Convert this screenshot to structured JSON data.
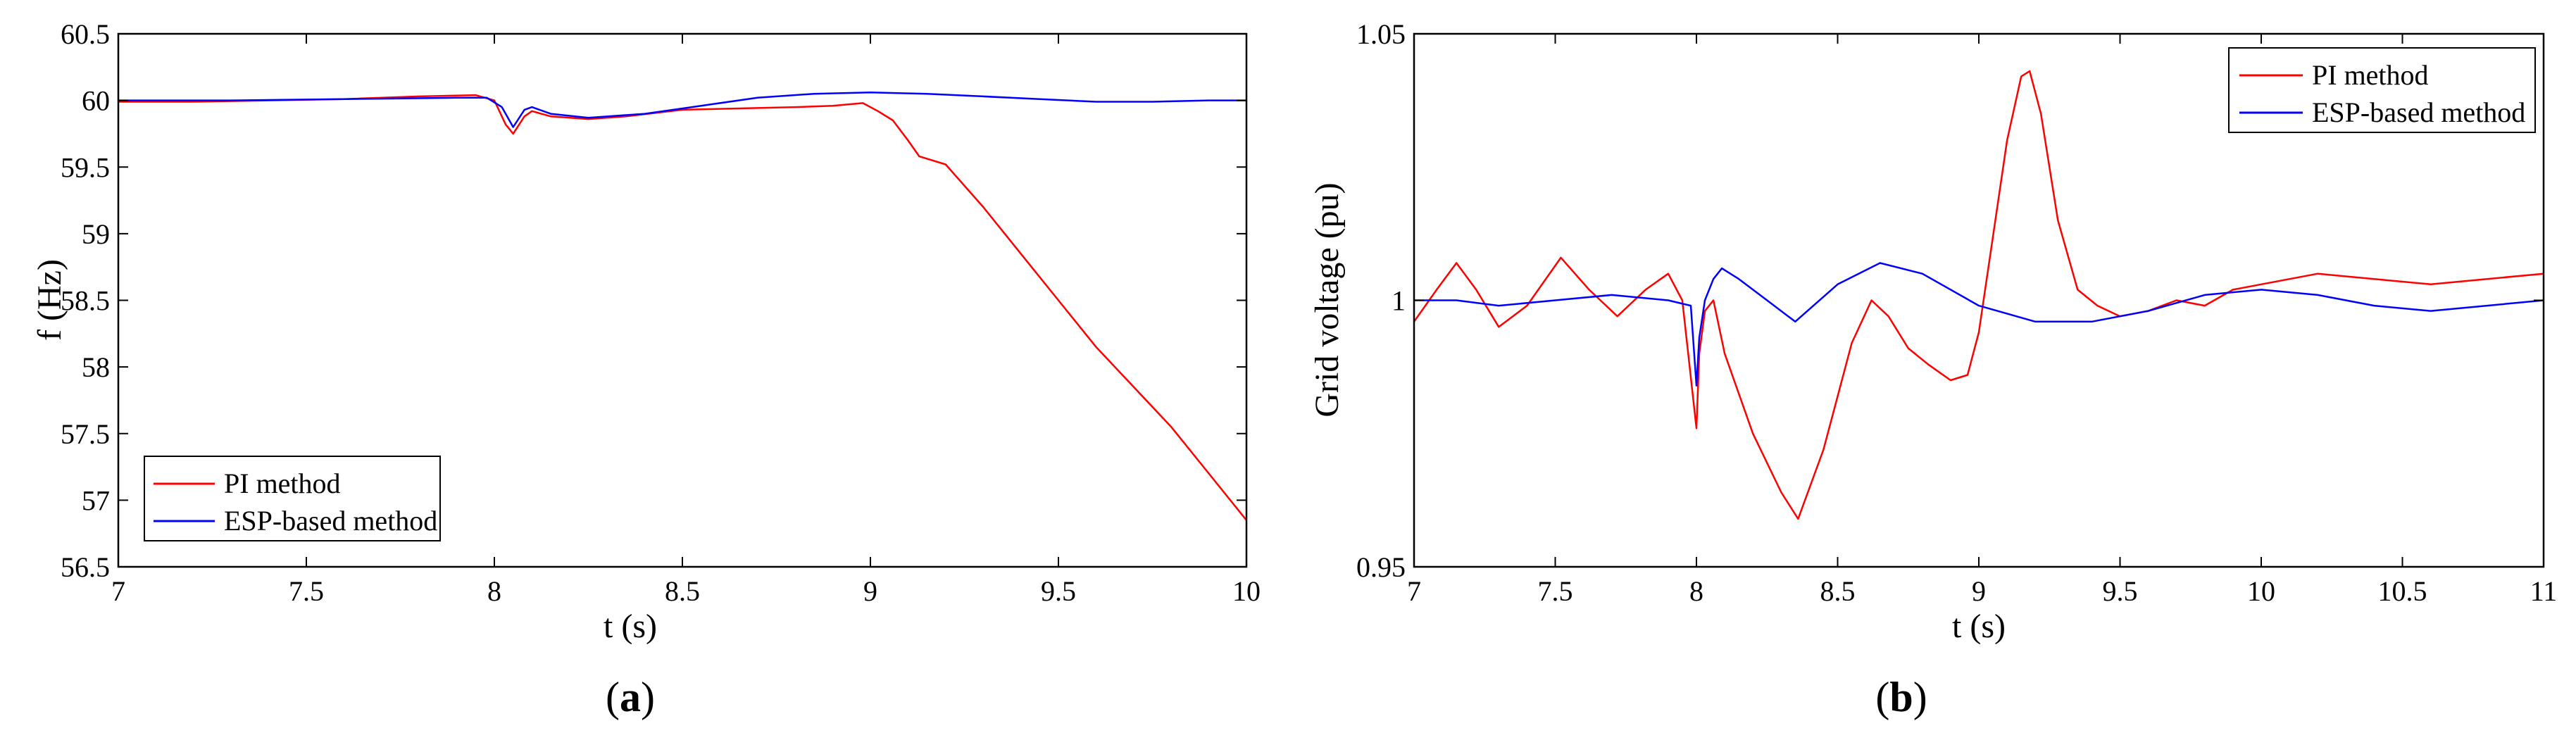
{
  "chart_data": [
    {
      "type": "line",
      "panel_label": "a",
      "xlabel": "t (s)",
      "ylabel": "f (Hz)",
      "xlim": [
        7,
        10
      ],
      "ylim": [
        56.5,
        60.5
      ],
      "xticks": [
        "7",
        "7.5",
        "8",
        "8.5",
        "9",
        "9.5",
        "10"
      ],
      "yticks": [
        "56.5",
        "57",
        "57.5",
        "58",
        "58.5",
        "59",
        "59.5",
        "60",
        "60.5"
      ],
      "grid": false,
      "legend_position": "bottom-left",
      "series": [
        {
          "name": "PI method",
          "color": "#ff0000",
          "x": [
            7,
            7.2,
            7.4,
            7.6,
            7.8,
            7.95,
            8.0,
            8.03,
            8.05,
            8.08,
            8.1,
            8.15,
            8.25,
            8.35,
            8.5,
            8.65,
            8.8,
            8.9,
            8.98,
            9.02,
            9.06,
            9.1,
            9.13,
            9.2,
            9.3,
            9.4,
            9.5,
            9.6,
            9.7,
            9.8,
            9.9,
            10.0
          ],
          "y": [
            59.99,
            59.99,
            60.0,
            60.01,
            60.03,
            60.04,
            60.0,
            59.82,
            59.75,
            59.88,
            59.92,
            59.88,
            59.86,
            59.88,
            59.93,
            59.94,
            59.95,
            59.96,
            59.98,
            59.92,
            59.85,
            59.7,
            59.58,
            59.52,
            59.2,
            58.85,
            58.5,
            58.15,
            57.85,
            57.55,
            57.2,
            56.85
          ]
        },
        {
          "name": "ESP-based method",
          "color": "#0000ff",
          "x": [
            7,
            7.3,
            7.6,
            7.9,
            7.98,
            8.02,
            8.05,
            8.08,
            8.1,
            8.15,
            8.25,
            8.4,
            8.55,
            8.7,
            8.85,
            9.0,
            9.15,
            9.3,
            9.45,
            9.6,
            9.75,
            9.9,
            10.0
          ],
          "y": [
            60.0,
            60.0,
            60.01,
            60.02,
            60.02,
            59.95,
            59.8,
            59.93,
            59.95,
            59.9,
            59.87,
            59.9,
            59.96,
            60.02,
            60.05,
            60.06,
            60.05,
            60.03,
            60.01,
            59.99,
            59.99,
            60.0,
            60.0
          ]
        }
      ]
    },
    {
      "type": "line",
      "panel_label": "b",
      "xlabel": "t (s)",
      "ylabel": "Grid voltage (pu)",
      "xlim": [
        7,
        11
      ],
      "ylim": [
        0.95,
        1.05
      ],
      "xticks": [
        "7",
        "7.5",
        "8",
        "8.5",
        "9",
        "9.5",
        "10",
        "10.5",
        "11"
      ],
      "yticks": [
        "0.95",
        "1",
        "1.05"
      ],
      "grid": false,
      "legend_position": "top-right",
      "series": [
        {
          "name": "PI method",
          "color": "#ff0000",
          "x": [
            7.0,
            7.08,
            7.15,
            7.22,
            7.3,
            7.4,
            7.52,
            7.62,
            7.72,
            7.82,
            7.9,
            7.95,
            8.0,
            8.01,
            8.03,
            8.06,
            8.1,
            8.2,
            8.3,
            8.36,
            8.45,
            8.55,
            8.62,
            8.68,
            8.75,
            8.82,
            8.9,
            8.96,
            9.0,
            9.05,
            9.1,
            9.15,
            9.18,
            9.22,
            9.28,
            9.35,
            9.42,
            9.5,
            9.6,
            9.7,
            9.8,
            9.9,
            10.0,
            10.2,
            10.4,
            10.6,
            10.8,
            11.0
          ],
          "y": [
            0.996,
            1.002,
            1.007,
            1.002,
            0.995,
            0.999,
            1.008,
            1.002,
            0.997,
            1.002,
            1.005,
            1.0,
            0.976,
            0.99,
            0.998,
            1.0,
            0.99,
            0.975,
            0.964,
            0.959,
            0.972,
            0.992,
            1.0,
            0.997,
            0.991,
            0.988,
            0.985,
            0.986,
            0.994,
            1.012,
            1.03,
            1.042,
            1.043,
            1.035,
            1.015,
            1.002,
            0.999,
            0.997,
            0.998,
            1.0,
            0.999,
            1.002,
            1.003,
            1.005,
            1.004,
            1.003,
            1.004,
            1.005
          ]
        },
        {
          "name": "ESP-based method",
          "color": "#0000ff",
          "x": [
            7.0,
            7.15,
            7.3,
            7.5,
            7.7,
            7.9,
            7.98,
            8.0,
            8.01,
            8.03,
            8.06,
            8.09,
            8.15,
            8.25,
            8.35,
            8.5,
            8.65,
            8.8,
            9.0,
            9.2,
            9.4,
            9.6,
            9.8,
            10.0,
            10.2,
            10.4,
            10.6,
            10.8,
            11.0
          ],
          "y": [
            1.0,
            1.0,
            0.999,
            1.0,
            1.001,
            1.0,
            0.999,
            0.984,
            0.993,
            1.0,
            1.004,
            1.006,
            1.004,
            1.0,
            0.996,
            1.003,
            1.007,
            1.005,
            0.999,
            0.996,
            0.996,
            0.998,
            1.001,
            1.002,
            1.001,
            0.999,
            0.998,
            0.999,
            1.0
          ]
        }
      ]
    }
  ]
}
